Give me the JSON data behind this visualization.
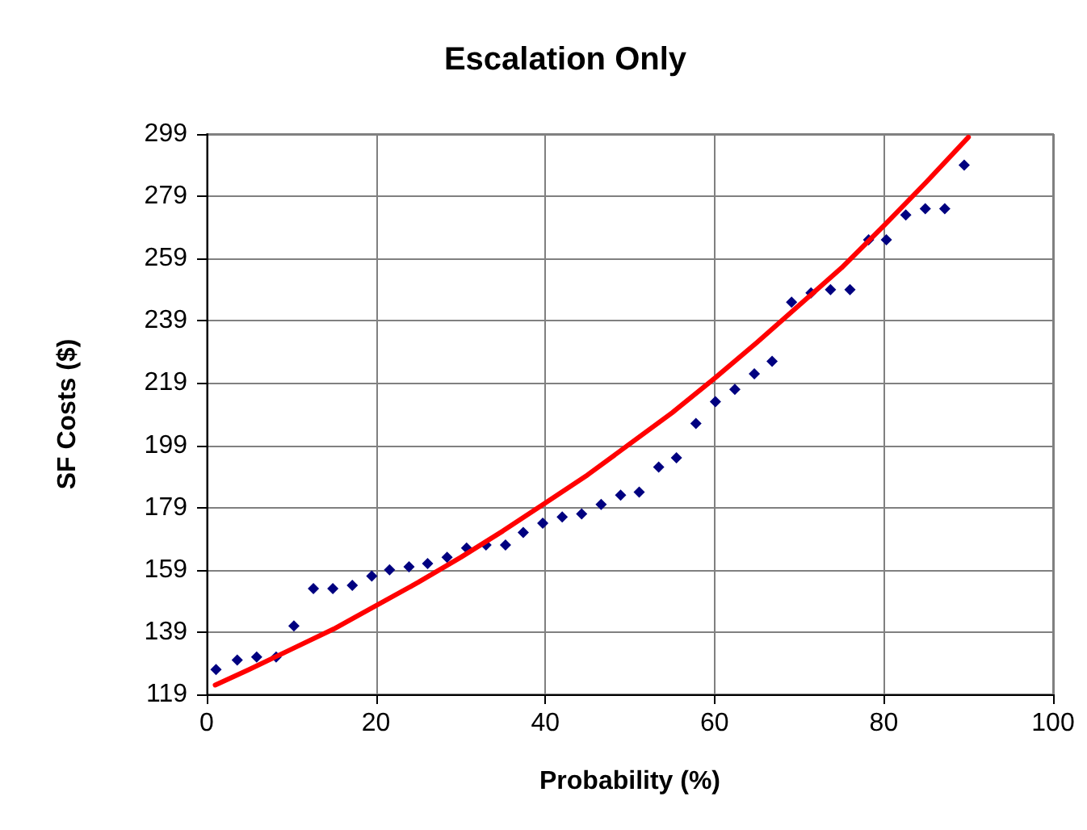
{
  "chart_data": {
    "type": "scatter",
    "title": "Escalation Only",
    "xlabel": "Probability (%)",
    "ylabel": "SF Costs ($)",
    "xlim": [
      0,
      100
    ],
    "xticks": [
      0,
      20,
      40,
      60,
      80,
      100
    ],
    "ylim": [
      119,
      299
    ],
    "yticks": [
      119,
      139,
      159,
      179,
      199,
      219,
      239,
      259,
      279,
      299
    ],
    "grid": true,
    "series": [
      {
        "color": "#000080",
        "marker": "diamond",
        "x": [
          1.1,
          3.6,
          5.9,
          8.2,
          10.3,
          12.6,
          14.9,
          17.2,
          19.5,
          21.6,
          23.9,
          26.1,
          28.4,
          30.7,
          33.0,
          35.3,
          37.4,
          39.7,
          42.0,
          44.3,
          46.6,
          48.9,
          51.1,
          53.4,
          55.5,
          57.8,
          60.1,
          62.4,
          64.7,
          66.8,
          69.1,
          71.4,
          73.7,
          76.0,
          78.2,
          80.3,
          82.6,
          84.9,
          87.2,
          89.5
        ],
        "values": [
          127,
          130,
          131,
          131,
          141,
          153,
          153,
          154,
          157,
          159,
          160,
          161,
          163,
          166,
          167,
          167,
          171,
          174,
          176,
          177,
          180,
          183,
          184,
          192,
          195,
          206,
          213,
          217,
          222,
          226,
          245,
          248,
          249,
          249,
          265,
          265,
          273,
          275,
          275,
          289
        ]
      },
      {
        "type": "line",
        "color": "#ff0000",
        "marker": "none",
        "line_style": "solid",
        "x": [
          1,
          5,
          10,
          15,
          20,
          25,
          30,
          35,
          40,
          45,
          50,
          55,
          60,
          65,
          70,
          75,
          80,
          85,
          90
        ],
        "values": [
          122,
          127,
          133.5,
          140,
          147.5,
          155,
          163,
          171.5,
          180.5,
          189.5,
          199.5,
          209.5,
          220.5,
          232,
          244,
          256,
          269.5,
          283.5,
          298
        ]
      }
    ]
  }
}
